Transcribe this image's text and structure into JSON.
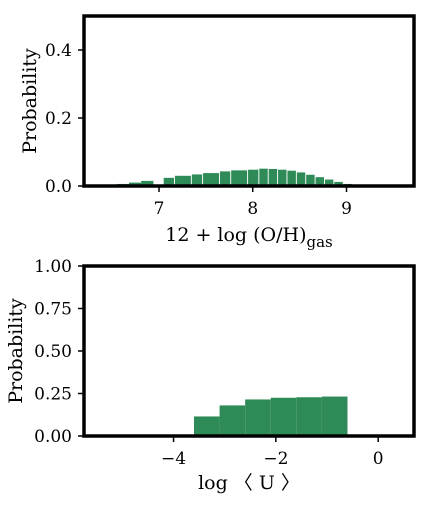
{
  "chart_data": [
    {
      "type": "bar",
      "xlabel": "12 + log (O/H)gas",
      "xlabel_main": "12 + log (O/H)",
      "xlabel_sub": "gas",
      "ylabel": "Probability",
      "xlim": [
        6.2,
        9.72
      ],
      "ylim": [
        0,
        0.5
      ],
      "xticks": [
        7,
        8,
        9
      ],
      "yticks": [
        0.0,
        0.2,
        0.4
      ],
      "ytick_labels": [
        "0.0",
        "0.2",
        "0.4"
      ],
      "bar_color": "#2e8b57",
      "bins": [
        {
          "x0": 6.55,
          "x1": 6.68,
          "value": 0.006
        },
        {
          "x0": 6.68,
          "x1": 6.81,
          "value": 0.01
        },
        {
          "x0": 6.81,
          "x1": 6.94,
          "value": 0.015
        },
        {
          "x0": 7.05,
          "x1": 7.16,
          "value": 0.024
        },
        {
          "x0": 7.17,
          "x1": 7.34,
          "value": 0.03
        },
        {
          "x0": 7.35,
          "x1": 7.46,
          "value": 0.034
        },
        {
          "x0": 7.47,
          "x1": 7.64,
          "value": 0.038
        },
        {
          "x0": 7.65,
          "x1": 7.76,
          "value": 0.043
        },
        {
          "x0": 7.77,
          "x1": 7.94,
          "value": 0.046
        },
        {
          "x0": 7.95,
          "x1": 8.06,
          "value": 0.048
        },
        {
          "x0": 8.07,
          "x1": 8.16,
          "value": 0.051
        },
        {
          "x0": 8.17,
          "x1": 8.26,
          "value": 0.05
        },
        {
          "x0": 8.27,
          "x1": 8.36,
          "value": 0.048
        },
        {
          "x0": 8.37,
          "x1": 8.46,
          "value": 0.045
        },
        {
          "x0": 8.47,
          "x1": 8.56,
          "value": 0.04
        },
        {
          "x0": 8.57,
          "x1": 8.66,
          "value": 0.033
        },
        {
          "x0": 8.67,
          "x1": 8.76,
          "value": 0.026
        },
        {
          "x0": 8.77,
          "x1": 8.86,
          "value": 0.019
        },
        {
          "x0": 8.87,
          "x1": 8.96,
          "value": 0.012
        },
        {
          "x0": 8.97,
          "x1": 9.06,
          "value": 0.006
        },
        {
          "x0": 9.07,
          "x1": 9.16,
          "value": 0.002
        }
      ]
    },
    {
      "type": "bar",
      "xlabel": "log 〈 U 〉",
      "xlabel_main": "log 〈 U 〉",
      "xlabel_sub": "",
      "ylabel": "Probability",
      "xlim": [
        -5.75,
        0.7
      ],
      "ylim": [
        0,
        1.0
      ],
      "xticks": [
        -4,
        -2,
        0
      ],
      "xtick_labels": [
        "−4",
        "−2",
        "0"
      ],
      "yticks": [
        0.0,
        0.25,
        0.5,
        0.75,
        1.0
      ],
      "ytick_labels": [
        "0.00",
        "0.25",
        "0.50",
        "0.75",
        "1.00"
      ],
      "bar_color": "#2e8b57",
      "bins": [
        {
          "x0": -4.1,
          "x1": -3.6,
          "value": 0.005
        },
        {
          "x0": -3.6,
          "x1": -3.1,
          "value": 0.115
        },
        {
          "x0": -3.1,
          "x1": -2.6,
          "value": 0.18
        },
        {
          "x0": -2.6,
          "x1": -2.1,
          "value": 0.215
        },
        {
          "x0": -2.1,
          "x1": -1.6,
          "value": 0.225
        },
        {
          "x0": -1.6,
          "x1": -1.1,
          "value": 0.228
        },
        {
          "x0": -1.1,
          "x1": -0.6,
          "value": 0.232
        }
      ]
    }
  ]
}
